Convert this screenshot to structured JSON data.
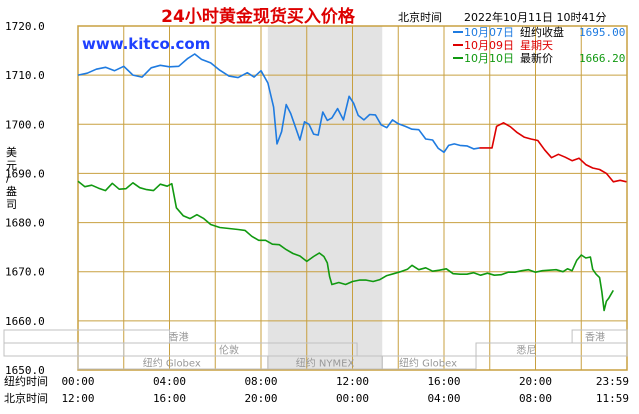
{
  "header": {
    "title": "24小时黄金现货买入价格",
    "clock_label": "北京时间",
    "datetime": "2022年10月11日 10时41分",
    "watermark": "www.kitco.com"
  },
  "legend": [
    {
      "label": "10月07日",
      "desc": "纽约收盘",
      "value": "1695.00",
      "color": "#1f7be0"
    },
    {
      "label": "10月09日",
      "desc": "星期天",
      "value": "",
      "color": "#dd0000"
    },
    {
      "label": "10月10日",
      "desc": "最新价",
      "value": "1666.20",
      "color": "#119911"
    }
  ],
  "colors": {
    "frame": "#c8a040",
    "title": "#dd0000",
    "watermark": "#1e40ff",
    "axis_text": "#000000",
    "night_shade": "#e3e3e3",
    "market_text": "#999999"
  },
  "ylabel": "美元/盎司",
  "markets": [
    {
      "name": "香港",
      "region": "Asia"
    },
    {
      "name": "伦敦",
      "region": "Europe"
    },
    {
      "name": "悉尼",
      "region": "Australia"
    },
    {
      "name": "纽约 Globex",
      "region": "globex-1"
    },
    {
      "name": "纽约 NYMEX",
      "region": "nymex"
    },
    {
      "name": "纽约 Globex",
      "region": "globex-2"
    }
  ],
  "time_axis": {
    "ny_label": "纽约时间",
    "bj_label": "北京时间",
    "ny_ticks": [
      "00:00",
      "04:00",
      "08:00",
      "12:00",
      "16:00",
      "20:00",
      "23:59"
    ],
    "bj_ticks": [
      "12:00",
      "16:00",
      "20:00",
      "00:00",
      "04:00",
      "08:00",
      "11:59"
    ]
  },
  "chart_data": {
    "type": "line",
    "title": "24小时黄金现货买入价格",
    "ylabel": "美元/盎司",
    "xlabel": "纽约时间",
    "ylim": [
      1650,
      1720
    ],
    "yticks": [
      "1650.0",
      "1660.0",
      "1670.0",
      "1680.0",
      "1690.0",
      "1700.0",
      "1710.0",
      "1720.0"
    ],
    "xlim_hours": [
      0,
      24
    ],
    "grid": true,
    "legend_position": "top-right",
    "series": [
      {
        "name": "10月07日",
        "color": "#1f7be0",
        "points": [
          [
            0.0,
            1710.0
          ],
          [
            0.4,
            1710.4
          ],
          [
            0.8,
            1711.2
          ],
          [
            1.2,
            1711.6
          ],
          [
            1.6,
            1710.9
          ],
          [
            2.0,
            1711.8
          ],
          [
            2.4,
            1710.0
          ],
          [
            2.8,
            1709.6
          ],
          [
            3.2,
            1711.5
          ],
          [
            3.6,
            1712.0
          ],
          [
            4.0,
            1711.7
          ],
          [
            4.4,
            1711.8
          ],
          [
            4.8,
            1713.4
          ],
          [
            5.1,
            1714.3
          ],
          [
            5.4,
            1713.2
          ],
          [
            5.8,
            1712.5
          ],
          [
            6.2,
            1711.0
          ],
          [
            6.6,
            1709.8
          ],
          [
            7.0,
            1709.5
          ],
          [
            7.4,
            1710.5
          ],
          [
            7.7,
            1709.6
          ],
          [
            8.0,
            1710.9
          ],
          [
            8.3,
            1708.4
          ],
          [
            8.55,
            1703.5
          ],
          [
            8.7,
            1696.0
          ],
          [
            8.9,
            1698.5
          ],
          [
            9.1,
            1704.0
          ],
          [
            9.3,
            1702.2
          ],
          [
            9.5,
            1699.5
          ],
          [
            9.7,
            1696.8
          ],
          [
            9.9,
            1700.5
          ],
          [
            10.1,
            1700.0
          ],
          [
            10.3,
            1698.0
          ],
          [
            10.5,
            1697.8
          ],
          [
            10.7,
            1702.5
          ],
          [
            10.9,
            1700.8
          ],
          [
            11.1,
            1701.3
          ],
          [
            11.35,
            1703.2
          ],
          [
            11.6,
            1700.9
          ],
          [
            11.85,
            1705.7
          ],
          [
            12.05,
            1704.3
          ],
          [
            12.25,
            1701.8
          ],
          [
            12.5,
            1700.9
          ],
          [
            12.75,
            1702.0
          ],
          [
            13.0,
            1701.9
          ],
          [
            13.25,
            1699.9
          ],
          [
            13.5,
            1699.3
          ],
          [
            13.75,
            1700.9
          ],
          [
            14.0,
            1700.1
          ],
          [
            14.3,
            1699.6
          ],
          [
            14.6,
            1699.0
          ],
          [
            14.9,
            1698.9
          ],
          [
            15.2,
            1697.0
          ],
          [
            15.5,
            1696.8
          ],
          [
            15.75,
            1695.1
          ],
          [
            16.0,
            1694.3
          ],
          [
            16.2,
            1695.7
          ],
          [
            16.45,
            1696.0
          ],
          [
            16.7,
            1695.7
          ],
          [
            17.0,
            1695.6
          ],
          [
            17.3,
            1695.0
          ],
          [
            17.55,
            1695.2
          ]
        ]
      },
      {
        "name": "10月09日",
        "color": "#dd0000",
        "points": [
          [
            17.55,
            1695.2
          ],
          [
            18.1,
            1695.2
          ],
          [
            18.3,
            1699.6
          ],
          [
            18.6,
            1700.3
          ],
          [
            18.9,
            1699.5
          ],
          [
            19.2,
            1698.3
          ],
          [
            19.5,
            1697.4
          ],
          [
            19.8,
            1697.0
          ],
          [
            20.1,
            1696.7
          ],
          [
            20.4,
            1694.8
          ],
          [
            20.7,
            1693.2
          ],
          [
            21.0,
            1693.9
          ],
          [
            21.3,
            1693.3
          ],
          [
            21.6,
            1692.6
          ],
          [
            21.9,
            1693.1
          ],
          [
            22.2,
            1691.8
          ],
          [
            22.5,
            1691.1
          ],
          [
            22.8,
            1690.8
          ],
          [
            23.1,
            1690.0
          ],
          [
            23.4,
            1688.3
          ],
          [
            23.7,
            1688.6
          ],
          [
            23.98,
            1688.3
          ]
        ]
      },
      {
        "name": "10月10日",
        "color": "#119911",
        "points": [
          [
            0.0,
            1688.4
          ],
          [
            0.3,
            1687.3
          ],
          [
            0.6,
            1687.6
          ],
          [
            0.9,
            1687.0
          ],
          [
            1.2,
            1686.5
          ],
          [
            1.5,
            1688.0
          ],
          [
            1.8,
            1686.8
          ],
          [
            2.1,
            1686.9
          ],
          [
            2.4,
            1688.1
          ],
          [
            2.7,
            1687.1
          ],
          [
            3.0,
            1686.7
          ],
          [
            3.3,
            1686.5
          ],
          [
            3.6,
            1687.8
          ],
          [
            3.9,
            1687.4
          ],
          [
            4.1,
            1687.9
          ],
          [
            4.3,
            1683.0
          ],
          [
            4.6,
            1681.4
          ],
          [
            4.9,
            1680.8
          ],
          [
            5.2,
            1681.6
          ],
          [
            5.5,
            1680.8
          ],
          [
            5.8,
            1679.6
          ],
          [
            6.2,
            1679.0
          ],
          [
            6.6,
            1678.8
          ],
          [
            7.0,
            1678.6
          ],
          [
            7.3,
            1678.4
          ],
          [
            7.6,
            1677.2
          ],
          [
            7.9,
            1676.4
          ],
          [
            8.2,
            1676.4
          ],
          [
            8.5,
            1675.6
          ],
          [
            8.8,
            1675.5
          ],
          [
            9.1,
            1674.5
          ],
          [
            9.4,
            1673.7
          ],
          [
            9.7,
            1673.2
          ],
          [
            10.0,
            1672.1
          ],
          [
            10.3,
            1673.1
          ],
          [
            10.55,
            1673.8
          ],
          [
            10.75,
            1673.1
          ],
          [
            10.9,
            1671.8
          ],
          [
            11.0,
            1669.0
          ],
          [
            11.1,
            1667.4
          ],
          [
            11.4,
            1667.8
          ],
          [
            11.7,
            1667.4
          ],
          [
            12.0,
            1668.0
          ],
          [
            12.3,
            1668.3
          ],
          [
            12.6,
            1668.3
          ],
          [
            12.9,
            1668.0
          ],
          [
            13.2,
            1668.4
          ],
          [
            13.5,
            1669.2
          ],
          [
            13.8,
            1669.6
          ],
          [
            14.1,
            1670.0
          ],
          [
            14.4,
            1670.5
          ],
          [
            14.6,
            1671.3
          ],
          [
            14.9,
            1670.4
          ],
          [
            15.2,
            1670.8
          ],
          [
            15.5,
            1670.1
          ],
          [
            15.8,
            1670.3
          ],
          [
            16.1,
            1670.6
          ],
          [
            16.4,
            1669.6
          ],
          [
            16.7,
            1669.5
          ],
          [
            17.0,
            1669.5
          ],
          [
            17.3,
            1669.8
          ],
          [
            17.6,
            1669.3
          ],
          [
            17.9,
            1669.7
          ],
          [
            18.2,
            1669.3
          ],
          [
            18.5,
            1669.4
          ],
          [
            18.8,
            1669.9
          ],
          [
            19.1,
            1669.9
          ],
          [
            19.4,
            1670.2
          ],
          [
            19.7,
            1670.4
          ],
          [
            20.0,
            1669.9
          ],
          [
            20.3,
            1670.2
          ],
          [
            20.6,
            1670.3
          ],
          [
            20.9,
            1670.4
          ],
          [
            21.2,
            1670.0
          ],
          [
            21.4,
            1670.6
          ],
          [
            21.6,
            1670.2
          ],
          [
            21.8,
            1672.3
          ],
          [
            22.0,
            1673.4
          ],
          [
            22.2,
            1672.8
          ],
          [
            22.4,
            1673.0
          ],
          [
            22.5,
            1670.5
          ],
          [
            22.65,
            1669.5
          ],
          [
            22.8,
            1668.8
          ],
          [
            22.9,
            1666.0
          ],
          [
            23.0,
            1662.1
          ],
          [
            23.1,
            1664.0
          ],
          [
            23.2,
            1664.6
          ],
          [
            23.3,
            1665.4
          ],
          [
            23.4,
            1666.2
          ]
        ]
      }
    ]
  }
}
